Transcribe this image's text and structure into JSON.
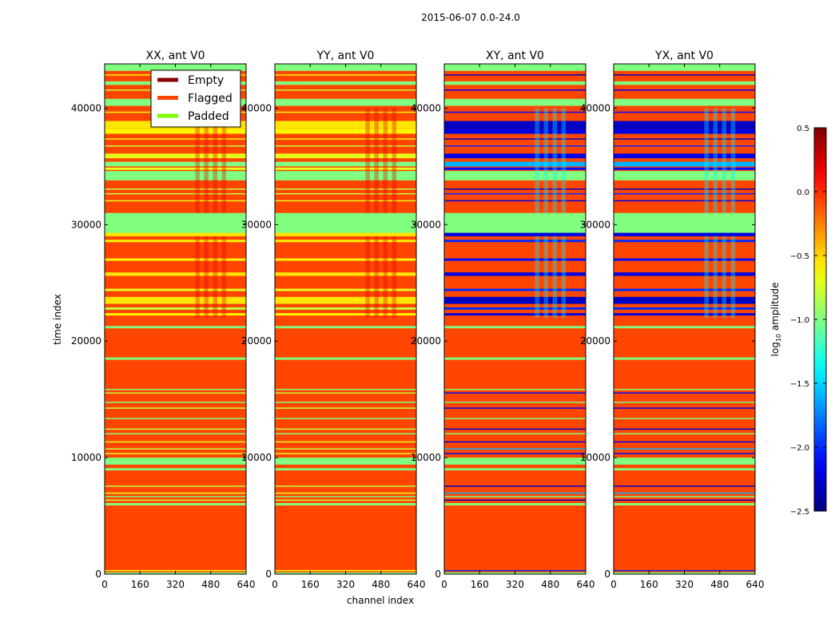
{
  "chart_data": {
    "type": "heatmap",
    "title": "2015-06-07 0.0-24.0",
    "xlabel": "channel index",
    "ylabel": "time index",
    "xlim": [
      0,
      640
    ],
    "ylim": [
      0,
      43800
    ],
    "xticks": [
      "0",
      "160",
      "320",
      "480",
      "640"
    ],
    "yticks": [
      "0",
      "10000",
      "20000",
      "30000",
      "40000"
    ],
    "panels": [
      {
        "title": "XX, ant V0"
      },
      {
        "title": "YY, ant V0"
      },
      {
        "title": "XY, ant V0"
      },
      {
        "title": "YX, ant V0"
      }
    ],
    "legend": {
      "placement": "top-right of first panel",
      "entries": [
        {
          "label": "Empty",
          "color": "#8b0000"
        },
        {
          "label": "Flagged",
          "color": "#ff4500"
        },
        {
          "label": "Padded",
          "color": "#7cfc00"
        }
      ]
    },
    "colorbar": {
      "label": "log10 amplitude",
      "label_main": "log",
      "label_sub": "10",
      "label_rest": " amplitude",
      "colormap": "jet",
      "range": [
        -2.5,
        0.5
      ],
      "ticks": [
        "0.5",
        "0.0",
        "−0.5",
        "−1.0",
        "−1.5",
        "−2.0",
        "−2.5"
      ],
      "tick_values": [
        0.5,
        0.0,
        -0.5,
        -1.0,
        -1.5,
        -2.0,
        -2.5
      ]
    },
    "base_state": "Flagged",
    "band_columns": [
      "t_start",
      "t_end",
      "XX",
      "YY",
      "XY",
      "YX"
    ],
    "bands": [
      [
        0,
        150,
        -1.0,
        -1.0,
        -1.0,
        -1.0
      ],
      [
        250,
        350,
        -0.6,
        -0.6,
        -2.0,
        -2.0
      ],
      [
        5900,
        6100,
        -1.0,
        -1.0,
        -1.0,
        -1.0
      ],
      [
        6300,
        6400,
        -0.8,
        -0.8,
        -2.3,
        -2.3
      ],
      [
        6600,
        6700,
        -1.0,
        -1.0,
        -1.0,
        -1.0
      ],
      [
        6900,
        7000,
        -0.7,
        -0.7,
        -1.6,
        -1.6
      ],
      [
        7500,
        7600,
        -0.8,
        -0.8,
        -2.3,
        -2.3
      ],
      [
        8900,
        9100,
        -1.0,
        -1.0,
        -1.0,
        -1.0
      ],
      [
        9400,
        10000,
        -1.0,
        -1.0,
        -1.0,
        -1.0
      ],
      [
        10300,
        10400,
        -0.7,
        -0.7,
        -2.1,
        -2.1
      ],
      [
        10700,
        10800,
        -0.8,
        -0.8,
        -1.6,
        -1.6
      ],
      [
        11300,
        11400,
        -0.7,
        -0.7,
        -2.2,
        -2.2
      ],
      [
        12000,
        12100,
        -1.0,
        -1.0,
        -1.0,
        -1.0
      ],
      [
        12400,
        12500,
        -0.8,
        -0.8,
        -2.3,
        -2.3
      ],
      [
        13300,
        13400,
        -1.0,
        -1.0,
        -1.0,
        -1.0
      ],
      [
        14200,
        14300,
        -0.8,
        -0.8,
        -2.2,
        -2.2
      ],
      [
        14700,
        14800,
        -1.0,
        -1.0,
        -1.0,
        -1.0
      ],
      [
        15500,
        15600,
        -0.8,
        -0.8,
        -2.1,
        -2.1
      ],
      [
        15800,
        15900,
        -1.0,
        -1.0,
        -1.0,
        -1.0
      ],
      [
        18400,
        18600,
        -1.0,
        -1.0,
        -1.0,
        -1.0
      ],
      [
        21100,
        21300,
        -1.0,
        -1.0,
        -1.0,
        -1.0
      ],
      [
        22200,
        22400,
        -0.6,
        -0.6,
        -2.2,
        -2.2
      ],
      [
        22700,
        22900,
        -0.8,
        -0.8,
        -2.0,
        -2.0
      ],
      [
        23200,
        23800,
        -0.55,
        -0.55,
        -2.3,
        -2.3
      ],
      [
        24300,
        24500,
        -0.7,
        -0.7,
        -2.0,
        -2.0
      ],
      [
        25600,
        25900,
        -0.55,
        -0.55,
        -2.2,
        -2.2
      ],
      [
        26900,
        27100,
        -0.6,
        -0.6,
        -2.1,
        -2.1
      ],
      [
        28500,
        28700,
        -0.6,
        -0.6,
        -2.0,
        -2.0
      ],
      [
        29000,
        29300,
        -0.55,
        -0.55,
        -2.2,
        -2.2
      ],
      [
        29300,
        31000,
        -1.0,
        -1.0,
        -1.0,
        -1.0
      ],
      [
        32000,
        32100,
        -0.7,
        -0.7,
        -2.2,
        -2.2
      ],
      [
        32600,
        32700,
        -0.8,
        -0.8,
        -2.0,
        -2.0
      ],
      [
        33000,
        33100,
        -0.8,
        -0.8,
        -2.3,
        -2.3
      ],
      [
        33800,
        34600,
        -1.0,
        -1.0,
        -1.0,
        -1.0
      ],
      [
        34700,
        34900,
        -0.7,
        -0.7,
        -2.1,
        -2.1
      ],
      [
        35000,
        35400,
        -1.0,
        -1.0,
        -1.6,
        -1.6
      ],
      [
        35700,
        36100,
        -0.7,
        -0.7,
        -2.2,
        -2.2
      ],
      [
        36700,
        36800,
        -0.8,
        -0.8,
        -2.0,
        -2.0
      ],
      [
        37300,
        37400,
        -0.6,
        -0.6,
        -2.3,
        -2.3
      ],
      [
        37800,
        38200,
        -0.6,
        -0.6,
        -2.2,
        -2.2
      ],
      [
        38200,
        38900,
        -0.55,
        -0.55,
        -2.3,
        -2.3
      ],
      [
        39600,
        39700,
        -0.7,
        -0.7,
        -2.1,
        -2.1
      ],
      [
        40200,
        40800,
        -1.0,
        -1.0,
        -1.0,
        -1.0
      ],
      [
        41500,
        41600,
        -0.8,
        -0.8,
        -2.2,
        -2.2
      ],
      [
        42000,
        42300,
        -1.0,
        -1.0,
        -1.0,
        -1.0
      ],
      [
        42800,
        42900,
        -0.6,
        -0.6,
        -2.3,
        -2.3
      ],
      [
        43200,
        43800,
        -1.0,
        -1.0,
        -1.0,
        -1.0
      ]
    ],
    "channel_stripes": {
      "channels": [
        [
          410,
          430
        ],
        [
          450,
          470
        ],
        [
          490,
          510
        ],
        [
          530,
          550
        ]
      ],
      "time_ranges": [
        [
          22000,
          29000
        ],
        [
          31000,
          40000
        ]
      ],
      "values": [
        0.2,
        0.2,
        -1.4,
        -1.4
      ]
    }
  }
}
